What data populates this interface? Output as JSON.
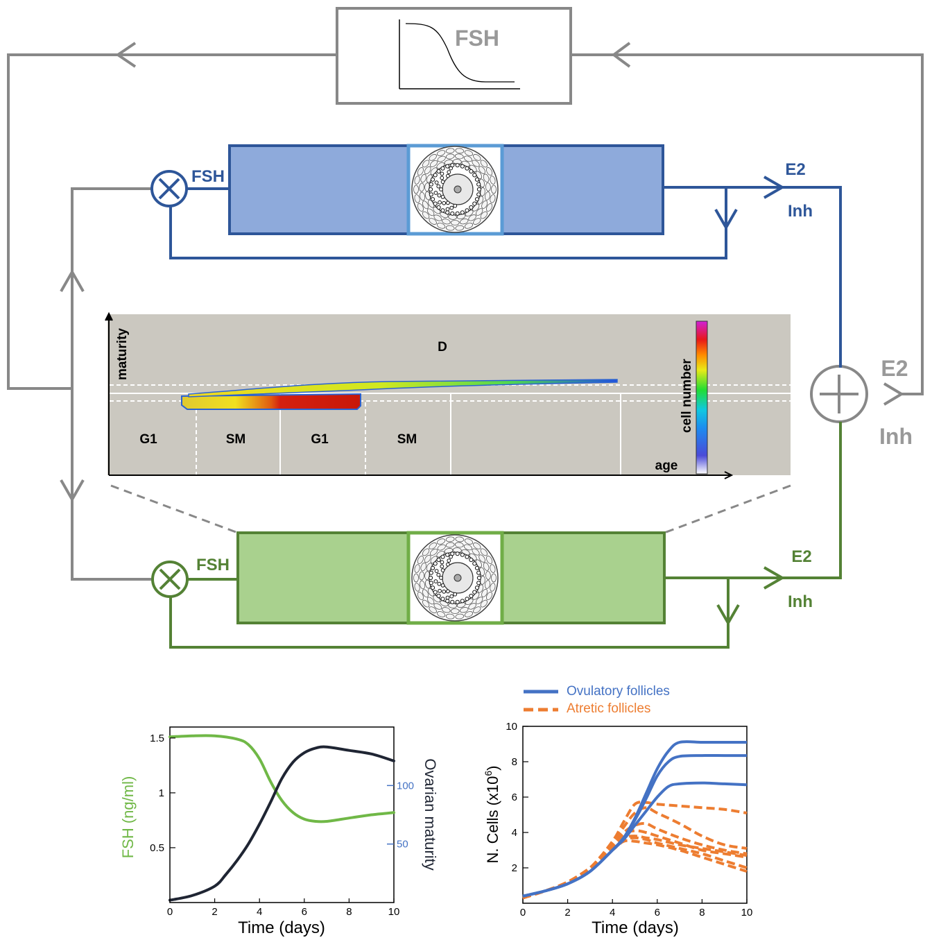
{
  "colors": {
    "grey": "#888888",
    "blue_line": "#2e5699",
    "blue_fill": "#8eaadb",
    "blue_frame": "#5b9bd5",
    "green_line": "#548235",
    "green_fill": "#a9d18e",
    "green_frame": "#70ad47",
    "panel_bg": "#cbc8c0",
    "fsh_curve": "#70b847",
    "maturity_curve": "#1f2533",
    "ovulatory": "#4472c4",
    "atretic": "#ed7d31"
  },
  "feedback": {
    "fsh_box_label": "FSH",
    "top_follicle": {
      "fsh": "FSH",
      "e2": "E2",
      "inh": "Inh"
    },
    "bottom_follicle": {
      "fsh": "FSH",
      "e2": "E2",
      "inh": "Inh"
    },
    "sum_output": {
      "e2": "E2",
      "inh": "Inh"
    }
  },
  "phase_panel": {
    "y_axis": "maturity",
    "x_axis": "age",
    "region_top": "D",
    "phases": [
      "G1",
      "SM",
      "G1",
      "SM"
    ],
    "colorbar_label": "cell number"
  },
  "chart_data": [
    {
      "type": "line",
      "xlabel": "Time (days)",
      "ylabel": "FSH (ng/ml)",
      "ylabel_right": "Ovarian maturity",
      "xlim": [
        0,
        10
      ],
      "ylim": [
        0,
        1.6
      ],
      "ylim_right": [
        0,
        150
      ],
      "x_ticks": [
        "0",
        "2",
        "4",
        "6",
        "8",
        "10"
      ],
      "y_ticks": [
        "0.5",
        "1",
        "1.5"
      ],
      "y_ticks_right": [
        "50",
        "100"
      ],
      "series": [
        {
          "name": "FSH",
          "axis": "left",
          "color": "#70b847",
          "x": [
            0,
            1,
            2,
            3,
            3.5,
            4,
            4.5,
            5,
            5.5,
            6,
            6.5,
            7,
            8,
            9,
            10
          ],
          "y": [
            1.51,
            1.52,
            1.52,
            1.49,
            1.44,
            1.31,
            1.1,
            0.93,
            0.82,
            0.76,
            0.74,
            0.74,
            0.77,
            0.8,
            0.82
          ]
        },
        {
          "name": "Ovarian maturity",
          "axis": "right",
          "color": "#1f2533",
          "x": [
            0,
            1,
            2,
            2.5,
            3,
            3.5,
            4,
            4.5,
            5,
            5.5,
            6,
            6.5,
            7,
            8,
            9,
            10
          ],
          "y": [
            2,
            6,
            14,
            24,
            36,
            50,
            67,
            86,
            106,
            120,
            128,
            132,
            133,
            130,
            127,
            121
          ]
        }
      ]
    },
    {
      "type": "line",
      "xlabel": "Time (days)",
      "ylabel": "N. Cells (x10",
      "ylabel_sup": "6",
      "ylabel_end": ")",
      "xlim": [
        0,
        10
      ],
      "ylim": [
        0,
        10
      ],
      "x_ticks": [
        "0",
        "2",
        "4",
        "6",
        "8",
        "10"
      ],
      "y_ticks": [
        "2",
        "4",
        "6",
        "8",
        "10"
      ],
      "legend": [
        {
          "label": "Ovulatory follicles",
          "color": "#4472c4",
          "style": "solid"
        },
        {
          "label": "Atretic follicles",
          "color": "#ed7d31",
          "style": "dashed"
        }
      ],
      "series": [
        {
          "group": "Ovulatory follicles",
          "x": [
            0,
            1,
            2,
            3,
            4,
            4.5,
            5,
            5.5,
            6,
            6.5,
            7,
            8,
            9,
            10
          ],
          "y": [
            0.4,
            0.7,
            1.1,
            1.8,
            3.0,
            3.7,
            4.8,
            6.2,
            7.6,
            8.6,
            9.1,
            9.1,
            9.1,
            9.1
          ]
        },
        {
          "group": "Ovulatory follicles",
          "x": [
            0,
            1,
            2,
            3,
            4,
            4.5,
            5,
            5.5,
            6,
            6.5,
            7,
            8,
            9,
            10
          ],
          "y": [
            0.4,
            0.7,
            1.1,
            1.8,
            3.0,
            3.7,
            4.7,
            5.9,
            7.2,
            8.0,
            8.3,
            8.35,
            8.35,
            8.35
          ]
        },
        {
          "group": "Ovulatory follicles",
          "x": [
            0,
            1,
            2,
            3,
            4,
            4.5,
            5,
            5.5,
            6,
            6.5,
            7,
            8,
            9,
            10
          ],
          "y": [
            0.4,
            0.7,
            1.1,
            1.8,
            3.0,
            3.6,
            4.4,
            5.2,
            6.0,
            6.6,
            6.75,
            6.8,
            6.75,
            6.7
          ]
        },
        {
          "group": "Atretic follicles",
          "x": [
            0,
            1,
            2,
            3,
            4,
            4.5,
            5,
            5.5,
            6,
            7,
            8,
            9,
            10
          ],
          "y": [
            0.3,
            0.7,
            1.2,
            2.0,
            3.5,
            4.6,
            5.6,
            5.7,
            5.6,
            5.5,
            5.4,
            5.3,
            5.1
          ]
        },
        {
          "group": "Atretic follicles",
          "x": [
            0,
            1,
            2,
            3,
            4,
            4.5,
            5,
            5.5,
            6,
            7,
            8,
            9,
            10
          ],
          "y": [
            0.3,
            0.7,
            1.2,
            2.0,
            3.4,
            4.3,
            5.1,
            5.4,
            5.1,
            4.5,
            3.8,
            3.3,
            3.1
          ]
        },
        {
          "group": "Atretic follicles",
          "x": [
            0,
            1,
            2,
            3,
            4,
            4.5,
            5,
            5.5,
            6,
            7,
            8,
            9,
            10
          ],
          "y": [
            0.3,
            0.7,
            1.2,
            2.0,
            3.3,
            4.0,
            4.4,
            4.5,
            4.2,
            3.7,
            3.3,
            3.0,
            2.8
          ]
        },
        {
          "group": "Atretic follicles",
          "x": [
            0,
            1,
            2,
            3,
            4,
            4.5,
            5,
            5.5,
            6,
            7,
            8,
            9,
            10
          ],
          "y": [
            0.3,
            0.7,
            1.2,
            2.0,
            3.2,
            3.9,
            4.1,
            4.0,
            3.8,
            3.4,
            3.0,
            2.8,
            2.6
          ]
        },
        {
          "group": "Atretic follicles",
          "x": [
            0,
            1,
            2,
            3,
            4,
            4.5,
            5,
            5.5,
            6,
            7,
            8,
            9,
            10
          ],
          "y": [
            0.3,
            0.7,
            1.2,
            2.0,
            3.2,
            3.7,
            3.8,
            3.7,
            3.6,
            3.3,
            3.1,
            2.9,
            2.7
          ]
        },
        {
          "group": "Atretic follicles",
          "x": [
            0,
            1,
            2,
            3,
            4,
            4.5,
            5,
            5.5,
            6,
            7,
            8,
            9,
            10
          ],
          "y": [
            0.3,
            0.7,
            1.2,
            2.0,
            3.1,
            3.6,
            3.7,
            3.6,
            3.4,
            3.1,
            2.8,
            2.4,
            2.0
          ]
        },
        {
          "group": "Atretic follicles",
          "x": [
            0,
            1,
            2,
            3,
            4,
            4.5,
            5,
            5.5,
            6,
            7,
            8,
            9,
            10
          ],
          "y": [
            0.3,
            0.7,
            1.2,
            2.0,
            3.0,
            3.5,
            3.5,
            3.4,
            3.3,
            3.0,
            2.6,
            2.2,
            1.8
          ]
        }
      ]
    }
  ]
}
